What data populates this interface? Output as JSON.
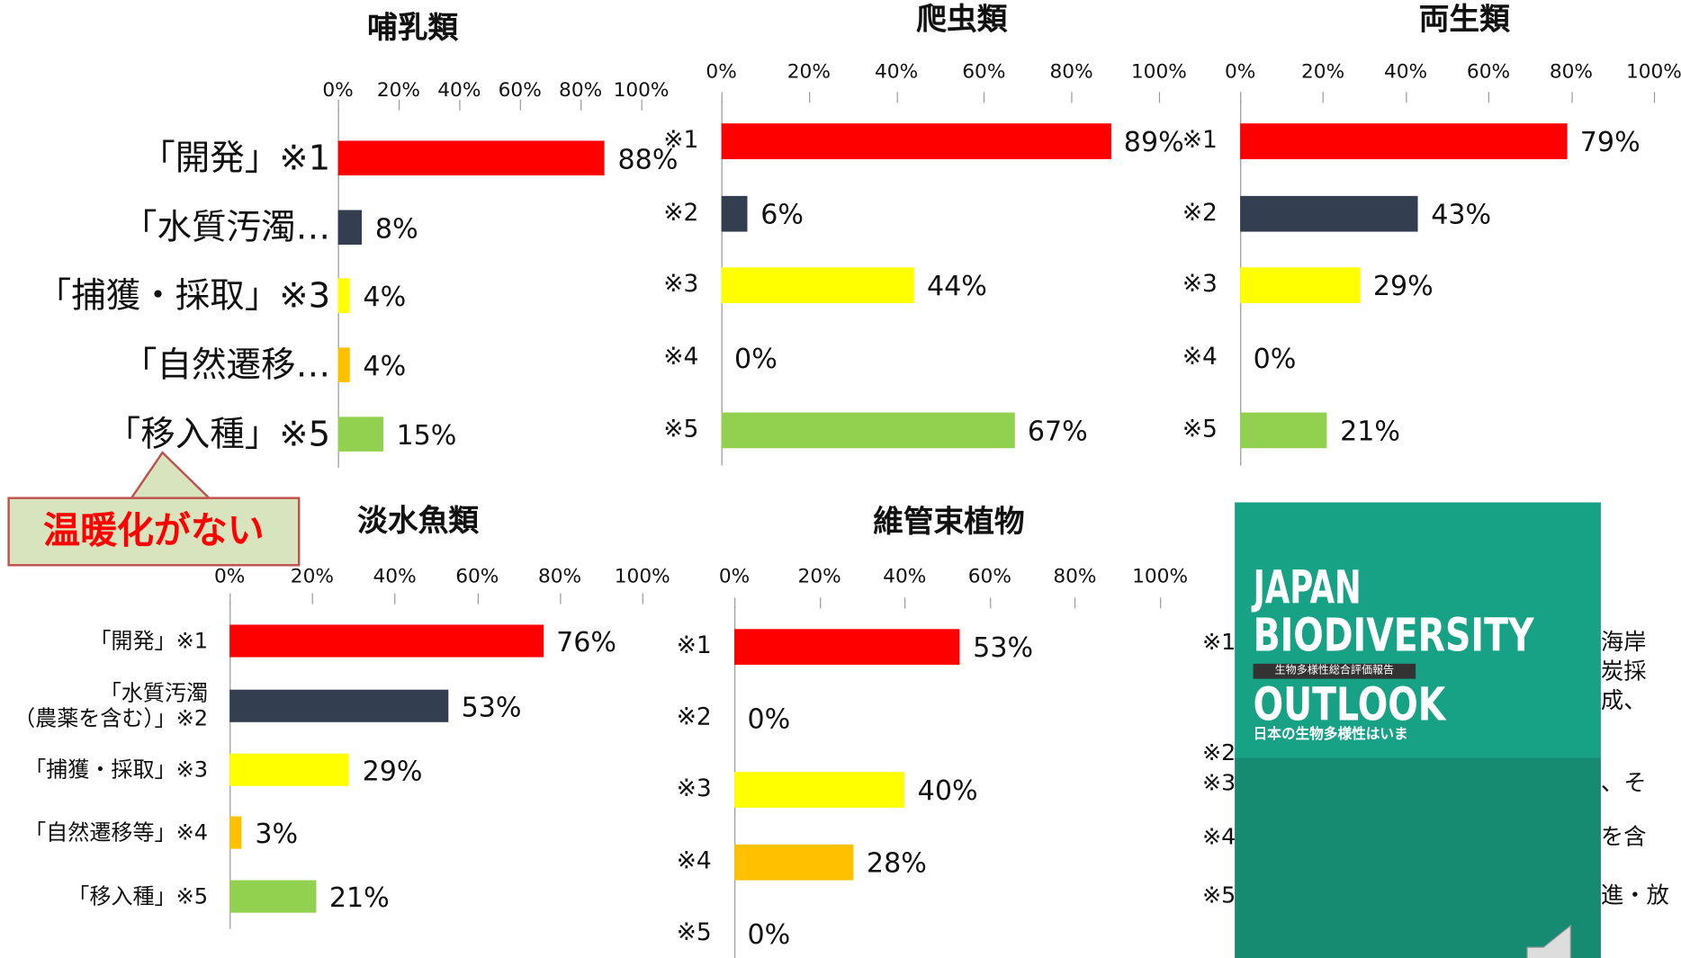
{
  "chart_data": [
    {
      "type": "bar",
      "orientation": "horizontal",
      "title": "哺乳類",
      "categories": [
        "「開発」※1",
        "「水質汚濁…",
        "「捕獲・採取」※3",
        "「自然遷移…",
        "「移入種」※5"
      ],
      "values": [
        88,
        8,
        4,
        4,
        15
      ],
      "value_labels": [
        "88%",
        "8%",
        "4%",
        "4%",
        "15%"
      ],
      "colors": [
        "#ff0000",
        "#333f50",
        "#ffff00",
        "#ffc000",
        "#92d050"
      ],
      "xlim": [
        0,
        100
      ],
      "xticks": [
        {
          "value": 0,
          "label": "0%"
        },
        {
          "value": 20,
          "label": "20%"
        },
        {
          "value": 40,
          "label": "40%"
        },
        {
          "value": 60,
          "label": "60%"
        },
        {
          "value": 80,
          "label": "80%"
        },
        {
          "value": 100,
          "label": "100%"
        }
      ]
    },
    {
      "type": "bar",
      "orientation": "horizontal",
      "title": "爬虫類",
      "categories": [
        "※1",
        "※2",
        "※3",
        "※4",
        "※5"
      ],
      "values": [
        89,
        6,
        44,
        0,
        67
      ],
      "value_labels": [
        "89%",
        "6%",
        "44%",
        "0%",
        "67%"
      ],
      "colors": [
        "#ff0000",
        "#333f50",
        "#ffff00",
        "#ffc000",
        "#92d050"
      ],
      "xlim": [
        0,
        100
      ],
      "xticks": [
        {
          "value": 0,
          "label": "0%"
        },
        {
          "value": 20,
          "label": "20%"
        },
        {
          "value": 40,
          "label": "40%"
        },
        {
          "value": 60,
          "label": "60%"
        },
        {
          "value": 80,
          "label": "80%"
        },
        {
          "value": 100,
          "label": "100%"
        }
      ]
    },
    {
      "type": "bar",
      "orientation": "horizontal",
      "title": "両生類",
      "categories": [
        "※1",
        "※2",
        "※3",
        "※4",
        "※5"
      ],
      "values": [
        79,
        43,
        29,
        0,
        21
      ],
      "value_labels": [
        "79%",
        "43%",
        "29%",
        "0%",
        "21%"
      ],
      "colors": [
        "#ff0000",
        "#333f50",
        "#ffff00",
        "#ffc000",
        "#92d050"
      ],
      "xlim": [
        0,
        100
      ],
      "xticks": [
        {
          "value": 0,
          "label": "0%"
        },
        {
          "value": 20,
          "label": "20%"
        },
        {
          "value": 40,
          "label": "40%"
        },
        {
          "value": 60,
          "label": "60%"
        },
        {
          "value": 80,
          "label": "80%"
        },
        {
          "value": 100,
          "label": "100%"
        }
      ]
    },
    {
      "type": "bar",
      "orientation": "horizontal",
      "title": "淡水魚類",
      "categories": [
        "「開発」※1",
        "「水質汚濁\n（農薬を含む）」※2",
        "「捕獲・採取」※3",
        "「自然遷移等」※4",
        "「移入種」※5"
      ],
      "values": [
        76,
        53,
        29,
        3,
        21
      ],
      "value_labels": [
        "76%",
        "53%",
        "29%",
        "3%",
        "21%"
      ],
      "colors": [
        "#ff0000",
        "#333f50",
        "#ffff00",
        "#ffc000",
        "#92d050"
      ],
      "xlim": [
        0,
        100
      ],
      "xticks": [
        {
          "value": 0,
          "label": "0%"
        },
        {
          "value": 20,
          "label": "20%"
        },
        {
          "value": 40,
          "label": "40%"
        },
        {
          "value": 60,
          "label": "60%"
        },
        {
          "value": 80,
          "label": "80%"
        },
        {
          "value": 100,
          "label": "100%"
        }
      ]
    },
    {
      "type": "bar",
      "orientation": "horizontal",
      "title": "維管束植物",
      "categories": [
        "※1",
        "※2",
        "※3",
        "※4",
        "※5"
      ],
      "values": [
        53,
        0,
        40,
        28,
        0
      ],
      "value_labels": [
        "53%",
        "0%",
        "40%",
        "28%",
        "0%"
      ],
      "colors": [
        "#ff0000",
        "#333f50",
        "#ffff00",
        "#ffc000",
        "#92d050"
      ],
      "xlim": [
        0,
        100
      ],
      "xticks": [
        {
          "value": 0,
          "label": "0%"
        },
        {
          "value": 20,
          "label": "20%"
        },
        {
          "value": 40,
          "label": "40%"
        },
        {
          "value": 60,
          "label": "60%"
        },
        {
          "value": 80,
          "label": "80%"
        },
        {
          "value": 100,
          "label": "100%"
        }
      ]
    }
  ],
  "callout": "温暖化がない",
  "book": {
    "title_lines": [
      "JAPAN",
      "BIODIVERSITY",
      "OUTLOOK"
    ],
    "band": "生物多様性総合評価報告",
    "subtitle": "日本の生物多様性はいま"
  },
  "fragments": [
    "※1",
    "海岸",
    "炭採",
    "成、",
    "※2",
    "※3",
    "、そ",
    "※4",
    "を含",
    "※5",
    "進・放"
  ]
}
